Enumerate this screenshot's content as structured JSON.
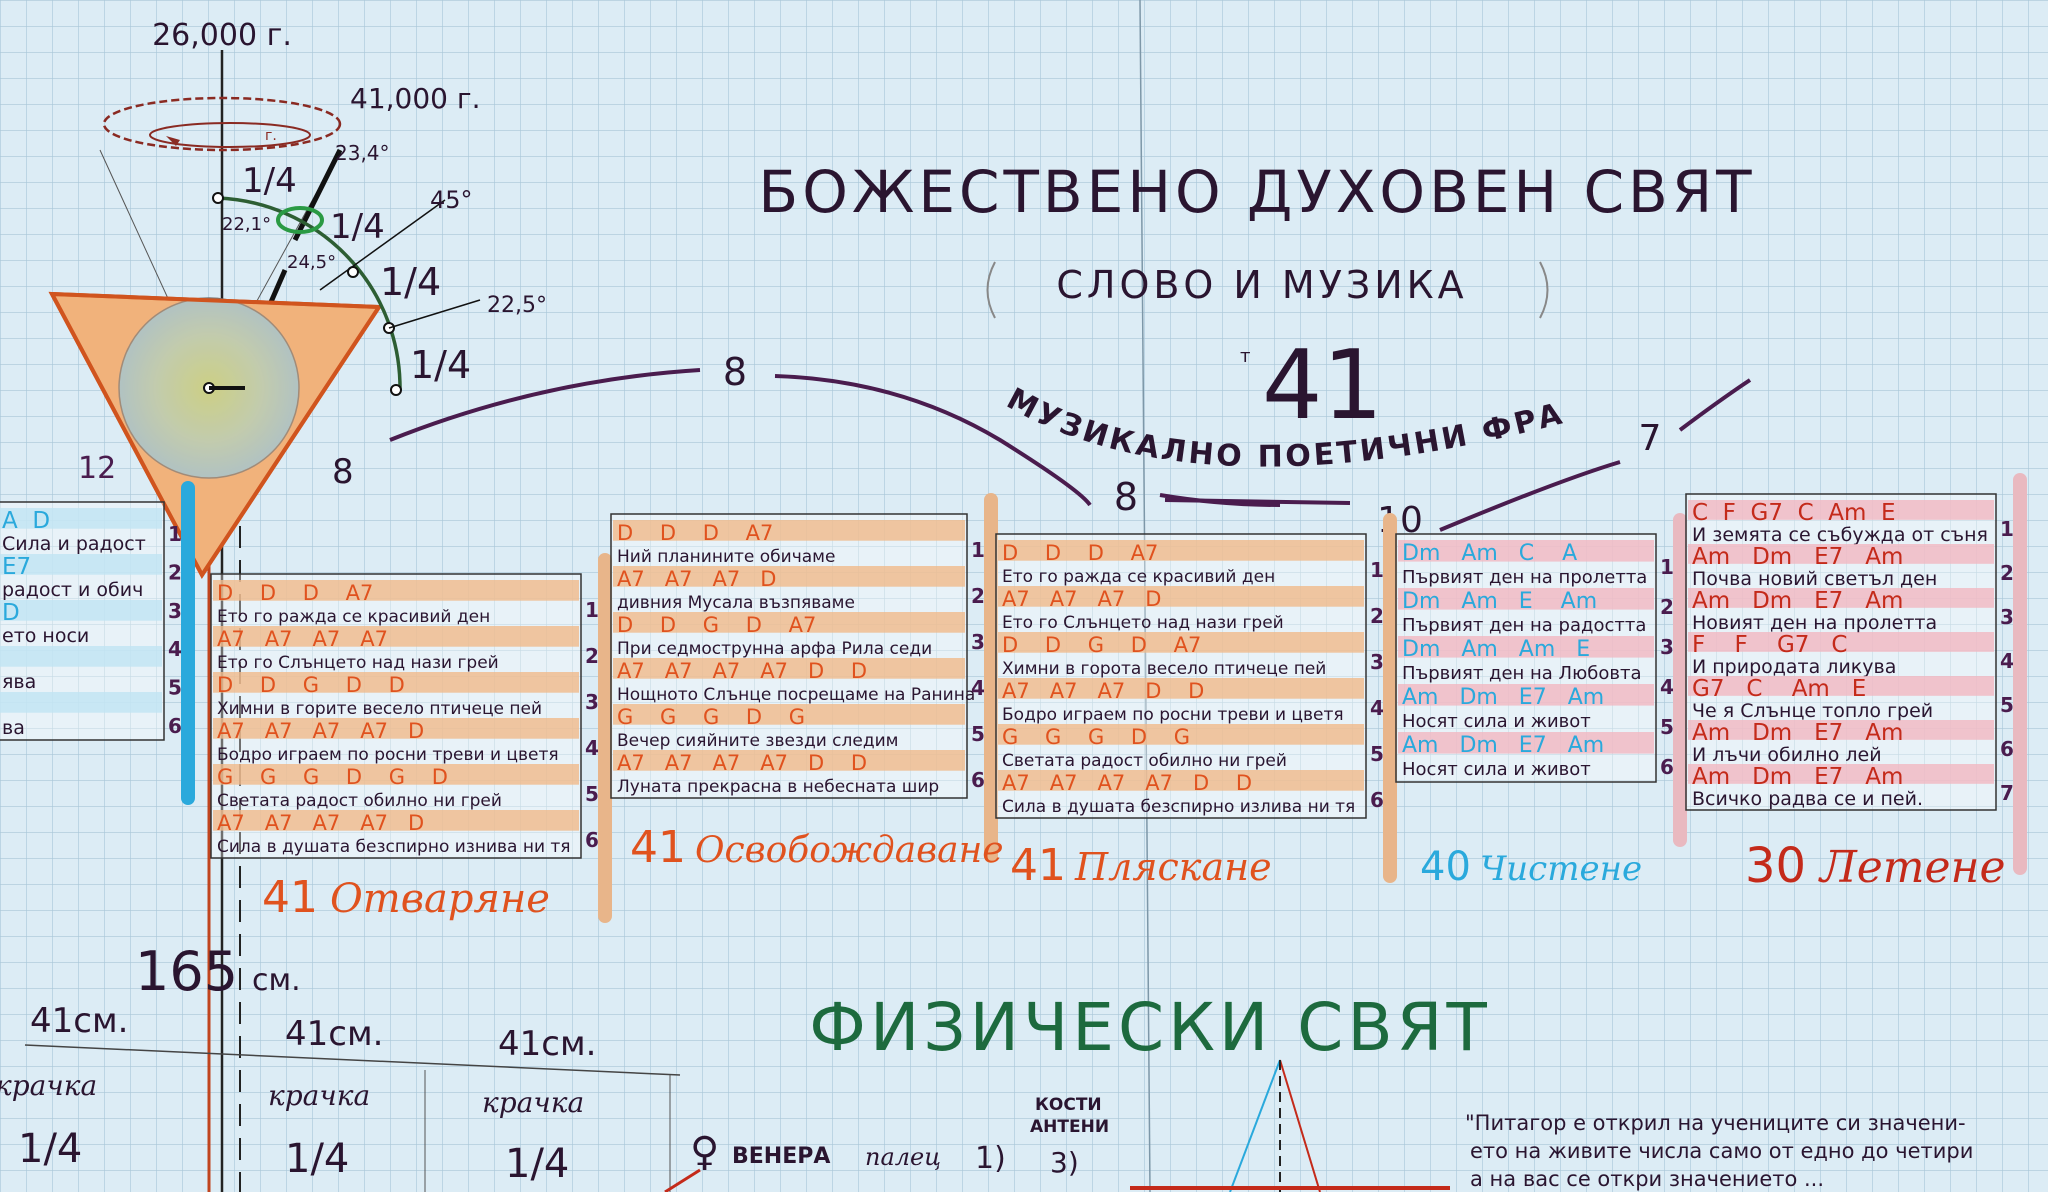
{
  "title": "БОЖЕСТВЕНО ДУХОВЕН СВЯТ",
  "subtitle": "СЛОВО И МУЗИКА",
  "center_number": "41",
  "center_number_mark": "т",
  "arc_label": "МУЗИКАЛНО ПОЕТИЧНИ ФРАЗИ",
  "arc_numbers": [
    "8",
    "8",
    "10",
    "7"
  ],
  "physical_world": "ФИЗИЧЕСКИ СВЯТ",
  "colors": {
    "paper": "#dcecf5",
    "grid": "#a8c6d8",
    "ink": "#2a1530",
    "orange": "#e0521e",
    "red": "#c42a1a",
    "cyan": "#2aa9dc",
    "green": "#1d6a3e",
    "flag_orange": "#f0b98a",
    "flag_pink": "#f1b7c0"
  },
  "precession": {
    "years_top": "26,000 г.",
    "years_right": "41,000 г.",
    "ellipse_mark": "г.",
    "angles": [
      "23,4°",
      "45°",
      "22,5°",
      "22,1°",
      "24,5°"
    ],
    "quarters": [
      "1/4",
      "1/4",
      "1/4",
      "1/4"
    ],
    "triangle_number": "8",
    "left_number": "12"
  },
  "flags": [
    {
      "id": "partial-left",
      "numbers": [
        "1",
        "2",
        "3",
        "4",
        "5",
        "6"
      ],
      "rows": [
        {
          "chords": "A  D",
          "lyric": "Сила и радост"
        },
        {
          "chords": "E7",
          "lyric": "радост и обич"
        },
        {
          "chords": "D",
          "lyric": "ето носи"
        },
        {
          "chords": "",
          "lyric": "ява"
        },
        {
          "chords": "",
          "lyric": "ва"
        }
      ]
    },
    {
      "id": "otvaryane",
      "count": "41",
      "label": "Отваряне",
      "numbers": [
        "1",
        "2",
        "3",
        "4",
        "5",
        "6"
      ],
      "rows": [
        {
          "chords": "D    D    D    A7",
          "lyric": "Ето го ражда се красивий ден"
        },
        {
          "chords": "A7   A7   A7   A7",
          "lyric": "Ето го Слънцето над нази грей"
        },
        {
          "chords": "D    D    G    D    D",
          "lyric": "Химни в горите весело птичеце пей"
        },
        {
          "chords": "A7   A7   A7   A7   D",
          "lyric": "Бодро играем по росни треви и цветя"
        },
        {
          "chords": "G    G    G    D    G    D",
          "lyric": "Светата радост обилно ни грей"
        },
        {
          "chords": "A7   A7   A7   A7   D",
          "lyric": "Сила в душата безспирно изнива ни тя"
        }
      ]
    },
    {
      "id": "osvobozhdavane",
      "count": "41",
      "label": "Освобождаване",
      "numbers": [
        "1",
        "2",
        "3",
        "4",
        "5",
        "6"
      ],
      "rows": [
        {
          "chords": "D    D    D    A7",
          "lyric": "Ний планините обичаме"
        },
        {
          "chords": "A7   A7   A7   D",
          "lyric": "дивния Мусала възпяваме"
        },
        {
          "chords": "D    D    G    D    A7",
          "lyric": "При седмострунна арфа Рила седи"
        },
        {
          "chords": "A7   A7   A7   A7   D    D",
          "lyric": "Нощното Слънце посрещаме на Ранина"
        },
        {
          "chords": "G    G    G    D    G",
          "lyric": "Вечер сияйните звезди следим"
        },
        {
          "chords": "A7   A7   A7   A7   D    D",
          "lyric": "Луната прекрасна в небесната шир"
        }
      ]
    },
    {
      "id": "plyaskane",
      "count": "41",
      "label": "Пляскане",
      "numbers": [
        "1",
        "2",
        "3",
        "4",
        "5",
        "6"
      ],
      "rows": [
        {
          "chords": "D    D    D    A7",
          "lyric": "Ето го ражда се красивий ден"
        },
        {
          "chords": "A7   A7   A7   D",
          "lyric": "Ето го Слънцето над нази грей"
        },
        {
          "chords": "D    D    G    D    A7",
          "lyric": "Химни в горота весело птичеце пей"
        },
        {
          "chords": "A7   A7   A7   D    D",
          "lyric": "Бодро играем по росни треви и цветя"
        },
        {
          "chords": "G    G    G    D    G",
          "lyric": "Светата радост обилно ни грей"
        },
        {
          "chords": "A7   A7   A7   A7   D    D",
          "lyric": "Сила в душата безспирно излива ни тя"
        }
      ]
    },
    {
      "id": "chistene",
      "count": "40",
      "label": "Чистене",
      "numbers": [
        "1",
        "2",
        "3",
        "4",
        "5",
        "6"
      ],
      "rows": [
        {
          "chords": "Dm   Am   C    A",
          "lyric": "Първият ден на пролетта"
        },
        {
          "chords": "Dm   Am   E    Am",
          "lyric": "Първият ден на радостта"
        },
        {
          "chords": "Dm   Am   Am   E",
          "lyric": "Първият ден на Любовта"
        },
        {
          "chords": "Am   Dm   E7   Am",
          "lyric": "Носят сила и живот"
        },
        {
          "chords": "Am   Dm   E7   Am",
          "lyric": "Носят сила и живот"
        }
      ]
    },
    {
      "id": "letene",
      "count": "30",
      "label": "Летене",
      "numbers": [
        "1",
        "2",
        "3",
        "4",
        "5",
        "6",
        "7"
      ],
      "rows": [
        {
          "chords": "C  F  G7  C  Am  E",
          "lyric": "И земята се събужда от съня"
        },
        {
          "chords": "Am   Dm   E7   Am",
          "lyric": "Почва новий светъл ден"
        },
        {
          "chords": "Am   Dm   E7   Am",
          "lyric": "Новият ден на пролетта"
        },
        {
          "chords": "F    F    G7   C",
          "lyric": "И природата ликува"
        },
        {
          "chords": "G7   C    Am   E",
          "lyric": "Че я Слънце топло грей"
        },
        {
          "chords": "Am   Dm   E7   Am",
          "lyric": "И лъчи обилно лей"
        },
        {
          "chords": "Am   Dm   E7   Am",
          "lyric": "Всичко радва се и пей."
        }
      ]
    }
  ],
  "measurements": {
    "height": "165",
    "height_unit": "см.",
    "steps": [
      {
        "length": "41см.",
        "label": "крачка",
        "fraction": "1/4"
      },
      {
        "length": "41см.",
        "label": "крачка",
        "fraction": "1/4"
      },
      {
        "length": "41см.",
        "label": "крачка",
        "fraction": "1/4"
      }
    ]
  },
  "planets": {
    "venus_symbol": "♀",
    "venus": "ВЕНЕРА",
    "finger": "палец",
    "finger_num": "1)",
    "bones_line1": "КОСТИ",
    "bones_line2": "АНТЕНИ",
    "bones_num": "3)"
  },
  "quote": [
    "\"Питагор е открил на учениците си значени-",
    "ето на живите числа само от едно до четири",
    "а на вас се откри значението ..."
  ]
}
